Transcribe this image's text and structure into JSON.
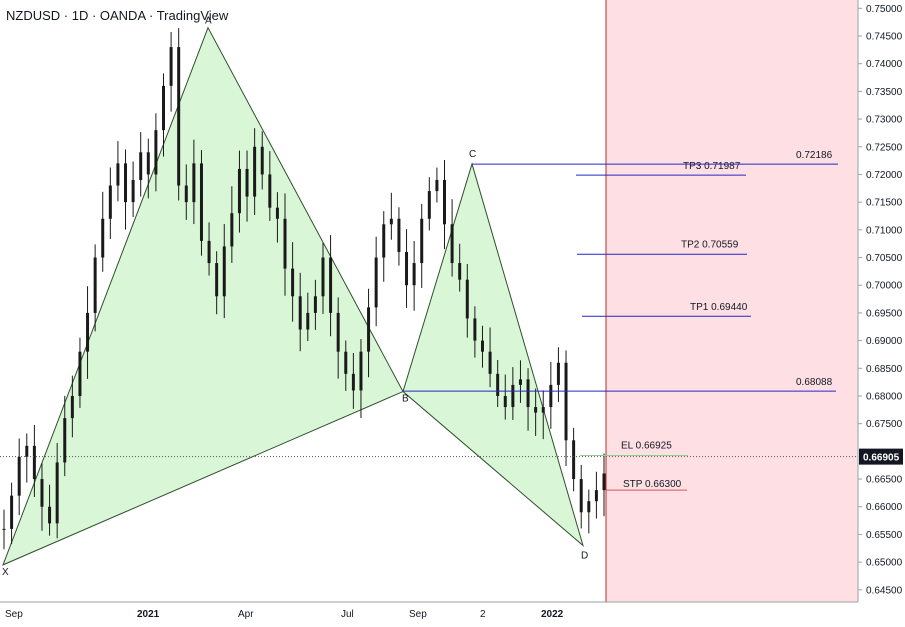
{
  "header": {
    "title": "NZDUSD · 1D · OANDA · TradingView"
  },
  "colors": {
    "pattern_fill": "#d9f7d6",
    "pattern_line": "#2f4f2f",
    "target_line": "#2626c8",
    "stop_line": "#e0525f",
    "entry_line": "#8fcf8a",
    "zone_fill": "#fddfe4",
    "zone_edge": "#c62828",
    "candle": "#1a1a1a",
    "price_badge_bg": "#131722",
    "price_badge_text": "#ffffff"
  },
  "chart_data": {
    "type": "line",
    "title": "NZDUSD · 1D · OANDA · TradingView",
    "x_ticks": [
      "Sep",
      "2021",
      "Apr",
      "Jul",
      "Sep",
      "2",
      "2022"
    ],
    "y_ticks": [
      "0.75000",
      "0.74500",
      "0.74000",
      "0.73500",
      "0.73000",
      "0.72500",
      "0.72000",
      "0.71500",
      "0.71000",
      "0.70500",
      "0.70000",
      "0.69500",
      "0.69000",
      "0.68500",
      "0.68000",
      "0.67500",
      "0.66500",
      "0.66000",
      "0.65500",
      "0.65000",
      "0.64500"
    ],
    "ylim": [
      0.6428,
      0.7515
    ],
    "current_price": "0.66905",
    "current_price_value": 0.66905,
    "pattern_points": [
      {
        "label": "X",
        "x": "Sep 2020",
        "y": 0.6495
      },
      {
        "label": "A",
        "x": "Feb 2021",
        "y": 0.7465
      },
      {
        "label": "B",
        "x": "Aug 2021",
        "y": 0.6808
      },
      {
        "label": "C",
        "x": "Oct 2021",
        "y": 0.7219
      },
      {
        "label": "D",
        "x": "Jan 2022",
        "y": 0.653
      }
    ],
    "levels": [
      {
        "name": "TP3",
        "label": "TP3 0.71987",
        "value": 0.71987
      },
      {
        "name": "C level",
        "label": "0.72186",
        "value": 0.72186
      },
      {
        "name": "TP2",
        "label": "TP2  0.70559",
        "value": 0.70559
      },
      {
        "name": "TP1",
        "label": "TP1 0.69440",
        "value": 0.6944
      },
      {
        "name": "B level",
        "label": "0.68088",
        "value": 0.68088
      },
      {
        "name": "EL",
        "label": "EL 0.66925",
        "value": 0.66925
      },
      {
        "name": "STP",
        "label": "STP 0.66300",
        "value": 0.663
      }
    ],
    "series": [
      {
        "close": [
          0.656,
          0.662,
          0.669,
          0.671,
          0.665,
          0.66,
          0.657,
          0.668,
          0.676,
          0.68,
          0.688,
          0.695,
          0.705,
          0.712,
          0.718,
          0.722,
          0.715,
          0.719,
          0.724,
          0.72,
          0.728,
          0.736,
          0.743,
          0.718,
          0.715,
          0.722,
          0.708,
          0.704,
          0.698,
          0.707,
          0.713,
          0.721,
          0.716,
          0.725,
          0.72,
          0.714,
          0.712,
          0.703,
          0.698,
          0.692,
          0.695,
          0.698,
          0.705,
          0.695,
          0.688,
          0.684,
          0.681,
          0.688,
          0.696,
          0.705,
          0.711,
          0.712,
          0.706,
          0.7,
          0.704,
          0.712,
          0.717,
          0.719,
          0.711,
          0.704,
          0.701,
          0.694,
          0.69,
          0.688,
          0.684,
          0.68,
          0.678,
          0.682,
          0.683,
          0.678,
          0.677,
          0.678,
          0.682,
          0.686,
          0.672,
          0.665,
          0.659,
          0.661,
          0.663,
          0.666
        ]
      }
    ]
  }
}
